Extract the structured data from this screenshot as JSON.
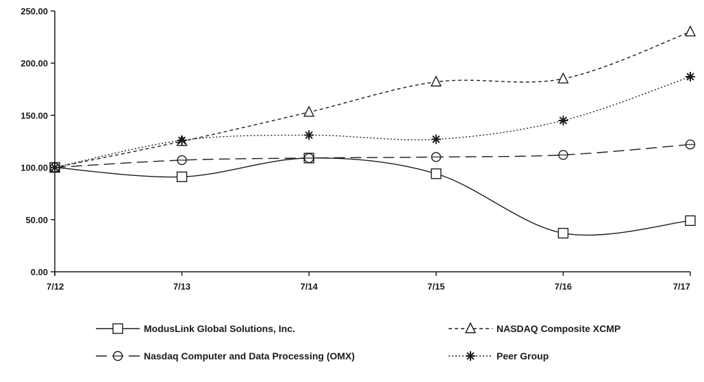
{
  "chart_data": {
    "type": "line",
    "categories": [
      "7/12",
      "7/13",
      "7/14",
      "7/15",
      "7/16",
      "7/17"
    ],
    "ylim": [
      0,
      250
    ],
    "yticks": [
      "0.00",
      "50.00",
      "100.00",
      "150.00",
      "200.00",
      "250.00"
    ],
    "legend_position": "bottom",
    "grid": false,
    "series": [
      {
        "name": "ModusLink Global Solutions, Inc.",
        "marker": "square",
        "line_style": "solid",
        "color": "#1a1a1a",
        "values": [
          100,
          91,
          109,
          94,
          37,
          49
        ]
      },
      {
        "name": "NASDAQ Composite XCMP",
        "marker": "triangle",
        "line_style": "dashed-short",
        "color": "#1a1a1a",
        "values": [
          100,
          125,
          153,
          182,
          185,
          230
        ]
      },
      {
        "name": "Nasdaq Computer and Data Processing (OMX)",
        "marker": "circle",
        "line_style": "dashed-long",
        "color": "#1a1a1a",
        "values": [
          100,
          107,
          109,
          110,
          112,
          122
        ]
      },
      {
        "name": "Peer Group",
        "marker": "asterisk",
        "line_style": "dotted",
        "color": "#1a1a1a",
        "values": [
          100,
          126,
          131,
          127,
          145,
          187
        ]
      }
    ]
  }
}
